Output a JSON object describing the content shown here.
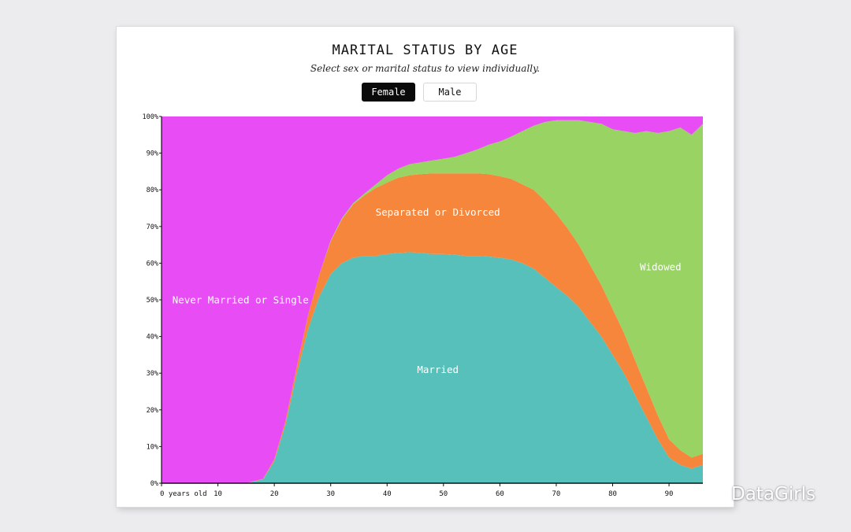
{
  "header": {
    "title": "MARITAL STATUS BY AGE",
    "subtitle": "Select sex or marital status to view individually."
  },
  "toggles": [
    {
      "label": "Female",
      "active": true
    },
    {
      "label": "Male",
      "active": false
    }
  ],
  "watermark": "DataGirls",
  "chart_data": {
    "type": "area",
    "stacked": true,
    "normalized": true,
    "xlabel": "",
    "ylabel": "",
    "xlim": [
      0,
      96
    ],
    "ylim": [
      0,
      100
    ],
    "x_ticks": [
      "0 years old",
      "10",
      "20",
      "30",
      "40",
      "50",
      "60",
      "70",
      "80",
      "90"
    ],
    "x_tick_values": [
      0,
      10,
      20,
      30,
      40,
      50,
      60,
      70,
      80,
      90
    ],
    "y_ticks": [
      "0%",
      "10%",
      "20%",
      "30%",
      "40%",
      "50%",
      "60%",
      "70%",
      "80%",
      "90%",
      "100%"
    ],
    "y_tick_values": [
      0,
      10,
      20,
      30,
      40,
      50,
      60,
      70,
      80,
      90,
      100
    ],
    "x": [
      0,
      15,
      18,
      20,
      22,
      24,
      26,
      28,
      30,
      32,
      34,
      36,
      38,
      40,
      42,
      44,
      46,
      48,
      50,
      52,
      54,
      56,
      58,
      60,
      62,
      64,
      66,
      68,
      70,
      72,
      74,
      76,
      78,
      80,
      82,
      84,
      86,
      88,
      90,
      92,
      94,
      96
    ],
    "series": [
      {
        "name": "Married",
        "color": "#58c0bb",
        "values": [
          0,
          0,
          1,
          6,
          16,
          30,
          42,
          51,
          57,
          60,
          61.5,
          62,
          62,
          62.5,
          62.8,
          63,
          62.8,
          62.5,
          62.5,
          62.3,
          62,
          62,
          61.8,
          61.5,
          61,
          60,
          58.5,
          56,
          53.5,
          51,
          48,
          44,
          40,
          35,
          30,
          24,
          18,
          12,
          7,
          5,
          4,
          5
        ]
      },
      {
        "name": "Separated or Divorced",
        "color": "#f5863b",
        "values": [
          0,
          0,
          0.2,
          0.5,
          1,
          2,
          4,
          6,
          9,
          12,
          14.5,
          16.5,
          18.5,
          19.5,
          20.5,
          21,
          21.5,
          22,
          22,
          22.2,
          22.5,
          22.5,
          22.5,
          22.2,
          22,
          21.5,
          21.5,
          21,
          20,
          18.5,
          17,
          15.5,
          14,
          12.5,
          11,
          9.5,
          8,
          6.5,
          5,
          4,
          3,
          3
        ]
      },
      {
        "name": "Widowed",
        "color": "#98d364",
        "values": [
          0,
          0,
          0,
          0,
          0,
          0,
          0,
          0,
          0.2,
          0.3,
          0.4,
          0.5,
          1,
          2,
          2.5,
          3,
          3.2,
          3.5,
          4,
          4.5,
          5.5,
          6.5,
          8,
          9.5,
          11.5,
          14.5,
          17.5,
          21.5,
          25.5,
          29.5,
          34,
          39,
          44,
          49,
          55,
          62,
          70,
          77,
          84,
          88,
          88,
          90
        ]
      },
      {
        "name": "Never Married or Single",
        "color": "#e84cf5",
        "values": [
          100,
          100,
          98.8,
          93.5,
          83,
          68,
          54,
          43,
          33.8,
          27.7,
          23.6,
          21,
          18.5,
          16,
          14.2,
          13,
          12.5,
          12,
          11.5,
          11,
          10,
          9,
          7.7,
          6.8,
          5.5,
          4,
          2.5,
          1.5,
          1,
          1,
          1,
          1.5,
          2,
          3.5,
          4,
          4.5,
          4,
          4.5,
          4,
          3,
          5,
          2
        ]
      }
    ],
    "labels": [
      {
        "series": "Never Married or Single",
        "text": "Never Married or Single",
        "x": 14,
        "y": 49
      },
      {
        "series": "Separated or Divorced",
        "text": "Separated or Divorced",
        "x": 49,
        "y": 73
      },
      {
        "series": "Married",
        "text": "Married",
        "x": 49,
        "y": 30
      },
      {
        "series": "Widowed",
        "text": "Widowed",
        "x": 88.5,
        "y": 58
      }
    ]
  }
}
